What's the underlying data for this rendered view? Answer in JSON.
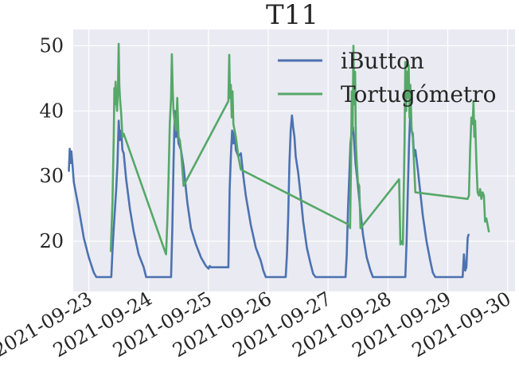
{
  "chart_data": {
    "type": "line",
    "title": "T11",
    "xlabel": "",
    "ylabel": "",
    "x_axis": "datetime",
    "xlim": [
      "2021-09-22T17:45",
      "2021-09-30T03:00"
    ],
    "ylim": [
      12.3,
      52.5
    ],
    "x_ticks": [
      "2021-09-23",
      "2021-09-24",
      "2021-09-25",
      "2021-09-26",
      "2021-09-27",
      "2021-09-28",
      "2021-09-29",
      "2021-09-30"
    ],
    "y_ticks": [
      20,
      30,
      40,
      50
    ],
    "grid": true,
    "background": "#EAEAF2",
    "legend": {
      "placement": "upper right"
    },
    "series": [
      {
        "name": "iButton",
        "color": "#4C72B0",
        "points": [
          [
            "2021-09-22T16:00",
            30.8
          ],
          [
            "2021-09-22T16:20",
            34.2
          ],
          [
            "2021-09-22T16:40",
            32.0
          ],
          [
            "2021-09-22T17:00",
            33.8
          ],
          [
            "2021-09-22T18:00",
            29.0
          ],
          [
            "2021-09-22T20:00",
            25.0
          ],
          [
            "2021-09-22T22:00",
            20.5
          ],
          [
            "2021-09-23T00:00",
            17.5
          ],
          [
            "2021-09-23T02:00",
            15.2
          ],
          [
            "2021-09-23T03:00",
            14.5
          ],
          [
            "2021-09-23T09:00",
            14.5
          ],
          [
            "2021-09-23T09:30",
            18.5
          ],
          [
            "2021-09-23T10:00",
            22.0
          ],
          [
            "2021-09-23T11:00",
            28.0
          ],
          [
            "2021-09-23T11:30",
            32.0
          ],
          [
            "2021-09-23T12:00",
            38.5
          ],
          [
            "2021-09-23T12:30",
            35.5
          ],
          [
            "2021-09-23T13:00",
            37.0
          ],
          [
            "2021-09-23T13:30",
            34.0
          ],
          [
            "2021-09-23T14:00",
            33.5
          ],
          [
            "2021-09-23T15:00",
            29.5
          ],
          [
            "2021-09-23T16:30",
            25.0
          ],
          [
            "2021-09-23T18:00",
            21.5
          ],
          [
            "2021-09-23T20:00",
            18.0
          ],
          [
            "2021-09-23T22:00",
            16.0
          ],
          [
            "2021-09-23T23:00",
            14.5
          ],
          [
            "2021-09-24T09:00",
            14.5
          ],
          [
            "2021-09-24T09:30",
            22.0
          ],
          [
            "2021-09-24T10:00",
            32.0
          ],
          [
            "2021-09-24T10:30",
            40.0
          ],
          [
            "2021-09-24T11:00",
            36.0
          ],
          [
            "2021-09-24T11:30",
            37.5
          ],
          [
            "2021-09-24T12:00",
            35.0
          ],
          [
            "2021-09-24T13:00",
            34.0
          ],
          [
            "2021-09-24T14:00",
            31.5
          ],
          [
            "2021-09-24T15:30",
            26.0
          ],
          [
            "2021-09-24T17:00",
            22.0
          ],
          [
            "2021-09-24T19:00",
            19.5
          ],
          [
            "2021-09-24T21:00",
            17.5
          ],
          [
            "2021-09-24T23:00",
            16.2
          ],
          [
            "2021-09-25T00:00",
            15.8
          ],
          [
            "2021-09-25T00:30",
            16.2
          ],
          [
            "2021-09-25T01:00",
            16.0
          ],
          [
            "2021-09-25T03:00",
            16.0
          ],
          [
            "2021-09-25T08:00",
            16.0
          ],
          [
            "2021-09-25T08:30",
            28.0
          ],
          [
            "2021-09-25T09:00",
            33.0
          ],
          [
            "2021-09-25T09:30",
            37.0
          ],
          [
            "2021-09-25T10:00",
            35.0
          ],
          [
            "2021-09-25T10:30",
            37.0
          ],
          [
            "2021-09-25T11:00",
            34.0
          ],
          [
            "2021-09-25T12:00",
            33.0
          ],
          [
            "2021-09-25T13:00",
            33.5
          ],
          [
            "2021-09-25T14:00",
            30.0
          ],
          [
            "2021-09-25T15:00",
            27.0
          ],
          [
            "2021-09-25T17:00",
            22.5
          ],
          [
            "2021-09-25T19:00",
            19.0
          ],
          [
            "2021-09-25T21:00",
            17.0
          ],
          [
            "2021-09-25T22:00",
            15.5
          ],
          [
            "2021-09-25T23:00",
            14.5
          ],
          [
            "2021-09-26T07:00",
            14.5
          ],
          [
            "2021-09-26T07:30",
            18.0
          ],
          [
            "2021-09-26T08:00",
            24.0
          ],
          [
            "2021-09-26T08:30",
            32.0
          ],
          [
            "2021-09-26T09:00",
            37.0
          ],
          [
            "2021-09-26T09:30",
            39.3
          ],
          [
            "2021-09-26T10:00",
            37.5
          ],
          [
            "2021-09-26T10:30",
            36.0
          ],
          [
            "2021-09-26T11:00",
            33.0
          ],
          [
            "2021-09-26T12:00",
            30.5
          ],
          [
            "2021-09-26T13:00",
            27.0
          ],
          [
            "2021-09-26T14:00",
            23.0
          ],
          [
            "2021-09-26T15:30",
            19.0
          ],
          [
            "2021-09-26T17:00",
            16.5
          ],
          [
            "2021-09-26T18:00",
            15.0
          ],
          [
            "2021-09-26T19:00",
            14.5
          ],
          [
            "2021-09-27T07:00",
            14.5
          ],
          [
            "2021-09-27T07:30",
            18.0
          ],
          [
            "2021-09-27T08:00",
            25.0
          ],
          [
            "2021-09-27T08:30",
            30.0
          ],
          [
            "2021-09-27T09:00",
            35.0
          ],
          [
            "2021-09-27T09:30",
            37.0
          ],
          [
            "2021-09-27T10:00",
            37.5
          ],
          [
            "2021-09-27T10:30",
            35.0
          ],
          [
            "2021-09-27T11:00",
            32.0
          ],
          [
            "2021-09-27T12:00",
            28.5
          ],
          [
            "2021-09-27T13:00",
            24.5
          ],
          [
            "2021-09-27T14:00",
            21.0
          ],
          [
            "2021-09-27T15:30",
            17.5
          ],
          [
            "2021-09-27T17:00",
            15.5
          ],
          [
            "2021-09-27T18:00",
            14.5
          ],
          [
            "2021-09-28T07:00",
            14.5
          ],
          [
            "2021-09-28T07:30",
            20.0
          ],
          [
            "2021-09-28T08:00",
            28.0
          ],
          [
            "2021-09-28T08:30",
            35.0
          ],
          [
            "2021-09-28T09:00",
            40.0
          ],
          [
            "2021-09-28T09:30",
            37.0
          ],
          [
            "2021-09-28T10:00",
            36.5
          ],
          [
            "2021-09-28T10:30",
            33.0
          ],
          [
            "2021-09-28T11:00",
            34.0
          ],
          [
            "2021-09-28T12:00",
            31.0
          ],
          [
            "2021-09-28T13:00",
            27.5
          ],
          [
            "2021-09-28T14:00",
            24.0
          ],
          [
            "2021-09-28T15:30",
            20.0
          ],
          [
            "2021-09-28T17:00",
            17.0
          ],
          [
            "2021-09-28T18:00",
            15.2
          ],
          [
            "2021-09-28T19:00",
            14.5
          ],
          [
            "2021-09-29T06:00",
            14.5
          ],
          [
            "2021-09-29T06:30",
            18.0
          ],
          [
            "2021-09-29T07:00",
            15.5
          ],
          [
            "2021-09-29T07:30",
            16.0
          ],
          [
            "2021-09-29T08:00",
            20.5
          ],
          [
            "2021-09-29T08:20",
            21.0
          ]
        ]
      },
      {
        "name": "Tortugómetro",
        "color": "#55A868",
        "points": [
          [
            "2021-09-23T08:50",
            18.5
          ],
          [
            "2021-09-23T09:30",
            26.0
          ],
          [
            "2021-09-23T10:00",
            36.0
          ],
          [
            "2021-09-23T10:15",
            43.5
          ],
          [
            "2021-09-23T10:30",
            41.0
          ],
          [
            "2021-09-23T10:45",
            44.5
          ],
          [
            "2021-09-23T11:00",
            42.0
          ],
          [
            "2021-09-23T11:20",
            40.0
          ],
          [
            "2021-09-23T11:40",
            43.0
          ],
          [
            "2021-09-23T12:00",
            50.3
          ],
          [
            "2021-09-23T12:15",
            44.0
          ],
          [
            "2021-09-23T12:30",
            42.0
          ],
          [
            "2021-09-23T13:00",
            39.5
          ],
          [
            "2021-09-23T13:30",
            36.0
          ],
          [
            "2021-09-23T14:00",
            36.5
          ],
          [
            "2021-09-24T06:30",
            18.5
          ],
          [
            "2021-09-24T07:00",
            18.0
          ],
          [
            "2021-09-24T07:30",
            23.0
          ],
          [
            "2021-09-24T08:00",
            30.0
          ],
          [
            "2021-09-24T08:30",
            38.0
          ],
          [
            "2021-09-24T09:00",
            42.0
          ],
          [
            "2021-09-24T09:20",
            48.7
          ],
          [
            "2021-09-24T09:40",
            43.0
          ],
          [
            "2021-09-24T10:00",
            40.0
          ],
          [
            "2021-09-24T10:30",
            38.0
          ],
          [
            "2021-09-24T11:00",
            37.0
          ],
          [
            "2021-09-24T11:30",
            42.0
          ],
          [
            "2021-09-24T12:00",
            36.0
          ],
          [
            "2021-09-24T12:30",
            35.5
          ],
          [
            "2021-09-24T13:00",
            34.0
          ],
          [
            "2021-09-24T14:00",
            28.5
          ],
          [
            "2021-09-25T08:00",
            41.5
          ],
          [
            "2021-09-25T08:20",
            48.6
          ],
          [
            "2021-09-25T08:40",
            42.0
          ],
          [
            "2021-09-25T09:00",
            44.0
          ],
          [
            "2021-09-25T09:20",
            39.0
          ],
          [
            "2021-09-25T09:40",
            43.0
          ],
          [
            "2021-09-25T10:00",
            38.0
          ],
          [
            "2021-09-25T10:30",
            37.0
          ],
          [
            "2021-09-25T11:00",
            36.0
          ],
          [
            "2021-09-25T12:00",
            33.0
          ],
          [
            "2021-09-25T13:00",
            31.0
          ],
          [
            "2021-09-27T08:30",
            22.5
          ],
          [
            "2021-09-27T08:50",
            22.0
          ],
          [
            "2021-09-27T09:10",
            31.0
          ],
          [
            "2021-09-27T09:30",
            43.0
          ],
          [
            "2021-09-27T09:50",
            37.0
          ],
          [
            "2021-09-27T10:10",
            50.0
          ],
          [
            "2021-09-27T10:30",
            41.0
          ],
          [
            "2021-09-27T10:50",
            46.0
          ],
          [
            "2021-09-27T11:10",
            35.0
          ],
          [
            "2021-09-27T11:30",
            32.0
          ],
          [
            "2021-09-27T12:00",
            29.0
          ],
          [
            "2021-09-27T12:30",
            28.5
          ],
          [
            "2021-09-27T13:00",
            22.0
          ],
          [
            "2021-09-28T04:30",
            29.5
          ],
          [
            "2021-09-28T05:00",
            19.5
          ],
          [
            "2021-09-28T05:30",
            20.0
          ],
          [
            "2021-09-28T06:00",
            19.5
          ],
          [
            "2021-09-28T06:40",
            35.0
          ],
          [
            "2021-09-28T07:00",
            47.5
          ],
          [
            "2021-09-28T07:20",
            40.0
          ],
          [
            "2021-09-28T07:40",
            46.0
          ],
          [
            "2021-09-28T08:00",
            42.0
          ],
          [
            "2021-09-28T08:20",
            47.0
          ],
          [
            "2021-09-28T08:40",
            39.0
          ],
          [
            "2021-09-28T09:00",
            44.0
          ],
          [
            "2021-09-28T09:30",
            37.0
          ],
          [
            "2021-09-28T10:00",
            36.0
          ],
          [
            "2021-09-28T11:00",
            27.5
          ],
          [
            "2021-09-29T08:00",
            26.5
          ],
          [
            "2021-09-29T08:30",
            27.0
          ],
          [
            "2021-09-29T09:00",
            34.0
          ],
          [
            "2021-09-29T09:30",
            39.0
          ],
          [
            "2021-09-29T10:00",
            38.0
          ],
          [
            "2021-09-29T10:20",
            41.5
          ],
          [
            "2021-09-29T10:40",
            36.0
          ],
          [
            "2021-09-29T11:00",
            38.5
          ],
          [
            "2021-09-29T11:30",
            32.0
          ],
          [
            "2021-09-29T12:00",
            27.5
          ],
          [
            "2021-09-29T12:30",
            27.0
          ],
          [
            "2021-09-29T13:00",
            28.0
          ],
          [
            "2021-09-29T13:30",
            26.5
          ],
          [
            "2021-09-29T14:00",
            27.5
          ],
          [
            "2021-09-29T14:30",
            27.0
          ],
          [
            "2021-09-29T15:00",
            23.0
          ],
          [
            "2021-09-29T15:30",
            23.5
          ],
          [
            "2021-09-29T16:00",
            22.5
          ],
          [
            "2021-09-29T16:30",
            21.5
          ]
        ]
      }
    ]
  }
}
